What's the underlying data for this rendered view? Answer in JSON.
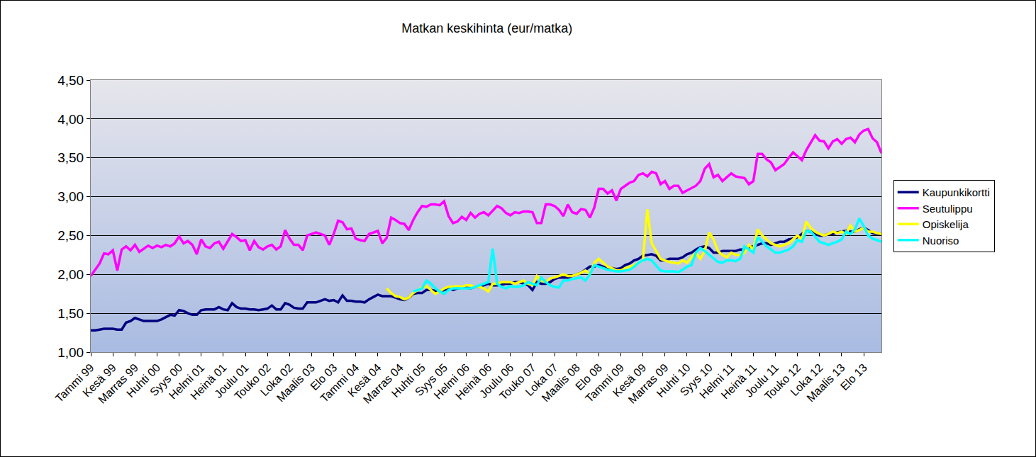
{
  "chart_data": {
    "type": "line",
    "title": "Matkan keskihinta (eur/matka)",
    "categories": [
      "Tammi 99",
      null,
      null,
      null,
      null,
      "Kesä 99",
      null,
      null,
      null,
      null,
      "Marras 99",
      null,
      null,
      null,
      null,
      "Huhti 00",
      null,
      null,
      null,
      null,
      "Syys 00",
      null,
      null,
      null,
      null,
      "Helmi 01",
      null,
      null,
      null,
      null,
      "Heinä 01",
      null,
      null,
      null,
      null,
      "Joulu 01",
      null,
      null,
      null,
      null,
      "Touko 02",
      null,
      null,
      null,
      null,
      "Loka 02",
      null,
      null,
      null,
      null,
      "Maalis 03",
      null,
      null,
      null,
      null,
      "Elo 03",
      null,
      null,
      null,
      null,
      "Tammi 04",
      null,
      null,
      null,
      null,
      "Kesä 04",
      null,
      null,
      null,
      null,
      "Marras 04",
      null,
      null,
      null,
      null,
      "Huhti 05",
      null,
      null,
      null,
      null,
      "Syys 05",
      null,
      null,
      null,
      null,
      "Helmi 06",
      null,
      null,
      null,
      null,
      "Heinä 06",
      null,
      null,
      null,
      null,
      "Joulu 06",
      null,
      null,
      null,
      null,
      "Touko 07",
      null,
      null,
      null,
      null,
      "Loka 07",
      null,
      null,
      null,
      null,
      "Maalis 08",
      null,
      null,
      null,
      null,
      "Elo 08",
      null,
      null,
      null,
      null,
      "Tammi 09",
      null,
      null,
      null,
      null,
      "Kesä 09",
      null,
      null,
      null,
      null,
      "Marras 09",
      null,
      null,
      null,
      null,
      "Huhti 10",
      null,
      null,
      null,
      null,
      "Syys 10",
      null,
      null,
      null,
      null,
      "Helmi 11",
      null,
      null,
      null,
      null,
      "Heinä 11",
      null,
      null,
      null,
      null,
      "Joulu 11",
      null,
      null,
      null,
      null,
      "Touko 12",
      null,
      null,
      null,
      null,
      "Loka 12",
      null,
      null,
      null,
      null,
      "Maalis 13",
      null,
      null,
      null,
      null,
      "Elo 13",
      null,
      null,
      null,
      null
    ],
    "series": [
      {
        "name": "Kaupunkikortti",
        "color": "#000080",
        "values": [
          1.28,
          1.28,
          1.29,
          1.3,
          1.3,
          1.3,
          1.29,
          1.29,
          1.38,
          1.4,
          1.44,
          1.42,
          1.4,
          1.4,
          1.4,
          1.4,
          1.42,
          1.45,
          1.48,
          1.47,
          1.54,
          1.53,
          1.5,
          1.48,
          1.48,
          1.54,
          1.55,
          1.55,
          1.55,
          1.58,
          1.55,
          1.54,
          1.63,
          1.58,
          1.56,
          1.56,
          1.55,
          1.55,
          1.54,
          1.55,
          1.56,
          1.6,
          1.55,
          1.55,
          1.63,
          1.61,
          1.57,
          1.56,
          1.56,
          1.64,
          1.64,
          1.64,
          1.66,
          1.68,
          1.66,
          1.67,
          1.64,
          1.73,
          1.66,
          1.66,
          1.65,
          1.65,
          1.64,
          1.68,
          1.71,
          1.74,
          1.72,
          1.72,
          1.72,
          1.7,
          1.68,
          1.67,
          1.7,
          1.75,
          1.76,
          1.76,
          1.8,
          1.8,
          1.79,
          1.78,
          1.8,
          1.82,
          1.8,
          1.82,
          1.83,
          1.83,
          1.82,
          1.84,
          1.84,
          1.86,
          1.88,
          1.86,
          1.86,
          1.87,
          1.88,
          1.88,
          1.9,
          1.9,
          1.88,
          1.86,
          1.8,
          1.9,
          1.88,
          1.88,
          1.9,
          1.94,
          1.96,
          1.96,
          1.96,
          1.98,
          2.0,
          2.02,
          2.06,
          2.1,
          2.1,
          2.12,
          2.1,
          2.08,
          2.08,
          2.07,
          2.08,
          2.12,
          2.14,
          2.18,
          2.2,
          2.24,
          2.25,
          2.26,
          2.24,
          2.18,
          2.18,
          2.2,
          2.2,
          2.2,
          2.22,
          2.26,
          2.28,
          2.32,
          2.35,
          2.36,
          2.34,
          2.28,
          2.28,
          2.3,
          2.3,
          2.3,
          2.3,
          2.32,
          2.32,
          2.35,
          2.36,
          2.38,
          2.4,
          2.4,
          2.38,
          2.4,
          2.42,
          2.42,
          2.45,
          2.46,
          2.48,
          2.52,
          2.56,
          2.55,
          2.52,
          2.5,
          2.5,
          2.52,
          2.52,
          2.54,
          2.55,
          2.56,
          2.55,
          2.55,
          2.58,
          2.6,
          2.57,
          2.53,
          2.52,
          2.52
        ]
      },
      {
        "name": "Seutulippu",
        "color": "#ff00ff",
        "values": [
          1.98,
          2.06,
          2.14,
          2.27,
          2.26,
          2.31,
          2.05,
          2.32,
          2.36,
          2.31,
          2.38,
          2.29,
          2.33,
          2.37,
          2.34,
          2.37,
          2.35,
          2.38,
          2.36,
          2.4,
          2.49,
          2.4,
          2.43,
          2.38,
          2.26,
          2.45,
          2.36,
          2.34,
          2.4,
          2.42,
          2.33,
          2.42,
          2.52,
          2.48,
          2.43,
          2.44,
          2.31,
          2.43,
          2.35,
          2.32,
          2.36,
          2.38,
          2.32,
          2.36,
          2.57,
          2.46,
          2.38,
          2.38,
          2.31,
          2.5,
          2.52,
          2.54,
          2.52,
          2.5,
          2.38,
          2.52,
          2.69,
          2.67,
          2.58,
          2.59,
          2.46,
          2.44,
          2.43,
          2.52,
          2.54,
          2.56,
          2.4,
          2.47,
          2.73,
          2.7,
          2.66,
          2.65,
          2.57,
          2.7,
          2.8,
          2.88,
          2.87,
          2.9,
          2.9,
          2.89,
          2.94,
          2.75,
          2.66,
          2.68,
          2.74,
          2.7,
          2.79,
          2.73,
          2.78,
          2.8,
          2.76,
          2.82,
          2.88,
          2.85,
          2.79,
          2.76,
          2.8,
          2.79,
          2.81,
          2.81,
          2.8,
          2.66,
          2.66,
          2.9,
          2.9,
          2.88,
          2.83,
          2.75,
          2.9,
          2.8,
          2.78,
          2.84,
          2.83,
          2.73,
          2.86,
          3.1,
          3.1,
          3.04,
          3.08,
          2.95,
          3.1,
          3.14,
          3.18,
          3.2,
          3.28,
          3.3,
          3.26,
          3.32,
          3.3,
          3.16,
          3.2,
          3.1,
          3.14,
          3.14,
          3.05,
          3.08,
          3.11,
          3.14,
          3.2,
          3.36,
          3.42,
          3.25,
          3.28,
          3.2,
          3.25,
          3.3,
          3.26,
          3.25,
          3.24,
          3.16,
          3.2,
          3.55,
          3.55,
          3.48,
          3.44,
          3.34,
          3.38,
          3.42,
          3.5,
          3.57,
          3.52,
          3.47,
          3.6,
          3.7,
          3.79,
          3.72,
          3.71,
          3.62,
          3.71,
          3.74,
          3.68,
          3.74,
          3.76,
          3.7,
          3.8,
          3.85,
          3.87,
          3.75,
          3.7,
          3.56
        ]
      },
      {
        "name": "Opiskelija",
        "color": "#ffff00",
        "values": [
          null,
          null,
          null,
          null,
          null,
          null,
          null,
          null,
          null,
          null,
          null,
          null,
          null,
          null,
          null,
          null,
          null,
          null,
          null,
          null,
          null,
          null,
          null,
          null,
          null,
          null,
          null,
          null,
          null,
          null,
          null,
          null,
          null,
          null,
          null,
          null,
          null,
          null,
          null,
          null,
          null,
          null,
          null,
          null,
          null,
          null,
          null,
          null,
          null,
          null,
          null,
          null,
          null,
          null,
          null,
          null,
          null,
          null,
          null,
          null,
          null,
          null,
          null,
          null,
          null,
          null,
          null,
          1.82,
          1.76,
          1.72,
          1.71,
          1.68,
          1.7,
          1.76,
          1.8,
          1.83,
          1.85,
          1.8,
          1.75,
          1.78,
          1.82,
          1.84,
          1.84,
          1.85,
          1.84,
          1.86,
          1.86,
          1.84,
          1.84,
          1.82,
          1.78,
          1.88,
          1.88,
          1.9,
          1.9,
          1.9,
          1.88,
          1.9,
          1.92,
          1.88,
          1.86,
          1.98,
          1.92,
          1.9,
          1.95,
          1.96,
          1.98,
          2.0,
          1.98,
          1.98,
          2.0,
          2.02,
          2.05,
          2.0,
          2.15,
          2.2,
          2.15,
          2.1,
          2.08,
          2.05,
          2.05,
          2.08,
          2.1,
          2.12,
          2.15,
          2.18,
          2.84,
          2.4,
          2.3,
          2.2,
          2.18,
          2.16,
          2.15,
          2.14,
          2.18,
          2.15,
          2.22,
          2.28,
          2.2,
          2.3,
          2.54,
          2.45,
          2.3,
          2.25,
          2.22,
          2.28,
          2.25,
          2.25,
          2.28,
          2.38,
          2.32,
          2.58,
          2.5,
          2.45,
          2.4,
          2.38,
          2.36,
          2.38,
          2.4,
          2.45,
          2.5,
          2.45,
          2.68,
          2.6,
          2.55,
          2.52,
          2.5,
          2.52,
          2.55,
          2.53,
          2.55,
          2.52,
          2.63,
          2.55,
          2.57,
          2.6,
          2.55,
          2.55,
          2.53,
          2.52
        ]
      },
      {
        "name": "Nuoriso",
        "color": "#00ffff",
        "values": [
          null,
          null,
          null,
          null,
          null,
          null,
          null,
          null,
          null,
          null,
          null,
          null,
          null,
          null,
          null,
          null,
          null,
          null,
          null,
          null,
          null,
          null,
          null,
          null,
          null,
          null,
          null,
          null,
          null,
          null,
          null,
          null,
          null,
          null,
          null,
          null,
          null,
          null,
          null,
          null,
          null,
          null,
          null,
          null,
          null,
          null,
          null,
          null,
          null,
          null,
          null,
          null,
          null,
          null,
          null,
          null,
          null,
          null,
          null,
          null,
          null,
          null,
          null,
          null,
          null,
          null,
          null,
          null,
          null,
          null,
          null,
          null,
          null,
          1.78,
          1.8,
          1.82,
          1.92,
          1.88,
          1.82,
          1.78,
          1.75,
          1.8,
          1.82,
          1.82,
          1.82,
          1.82,
          1.82,
          1.84,
          1.86,
          1.88,
          1.9,
          2.33,
          1.88,
          1.84,
          1.82,
          1.85,
          1.84,
          1.84,
          1.86,
          1.9,
          1.88,
          1.86,
          1.96,
          1.9,
          1.86,
          1.84,
          1.83,
          1.92,
          1.92,
          1.94,
          1.95,
          1.96,
          1.92,
          2.0,
          2.12,
          2.1,
          2.08,
          2.06,
          2.05,
          2.04,
          2.04,
          2.05,
          2.06,
          2.1,
          2.15,
          2.18,
          2.2,
          2.18,
          2.12,
          2.05,
          2.04,
          2.04,
          2.04,
          2.03,
          2.06,
          2.1,
          2.12,
          2.28,
          2.34,
          2.3,
          2.25,
          2.2,
          2.16,
          2.15,
          2.18,
          2.18,
          2.17,
          2.2,
          2.36,
          2.32,
          2.28,
          2.48,
          2.42,
          2.36,
          2.32,
          2.28,
          2.28,
          2.3,
          2.32,
          2.36,
          2.44,
          2.42,
          2.56,
          2.55,
          2.48,
          2.42,
          2.4,
          2.38,
          2.4,
          2.42,
          2.45,
          2.55,
          2.52,
          2.58,
          2.72,
          2.62,
          2.5,
          2.46,
          2.44,
          2.42
        ]
      }
    ],
    "ylim": [
      1,
      4.5
    ],
    "yticks": [
      {
        "value": 1,
        "label": "1,00"
      },
      {
        "value": 1.5,
        "label": "1,50"
      },
      {
        "value": 2,
        "label": "2,00"
      },
      {
        "value": 2.5,
        "label": "2,50"
      },
      {
        "value": 3,
        "label": "3,00"
      },
      {
        "value": 3.5,
        "label": "3,50"
      },
      {
        "value": 4,
        "label": "4,00"
      },
      {
        "value": 4.5,
        "label": "4,50"
      }
    ],
    "grid": true,
    "legend": "right"
  }
}
